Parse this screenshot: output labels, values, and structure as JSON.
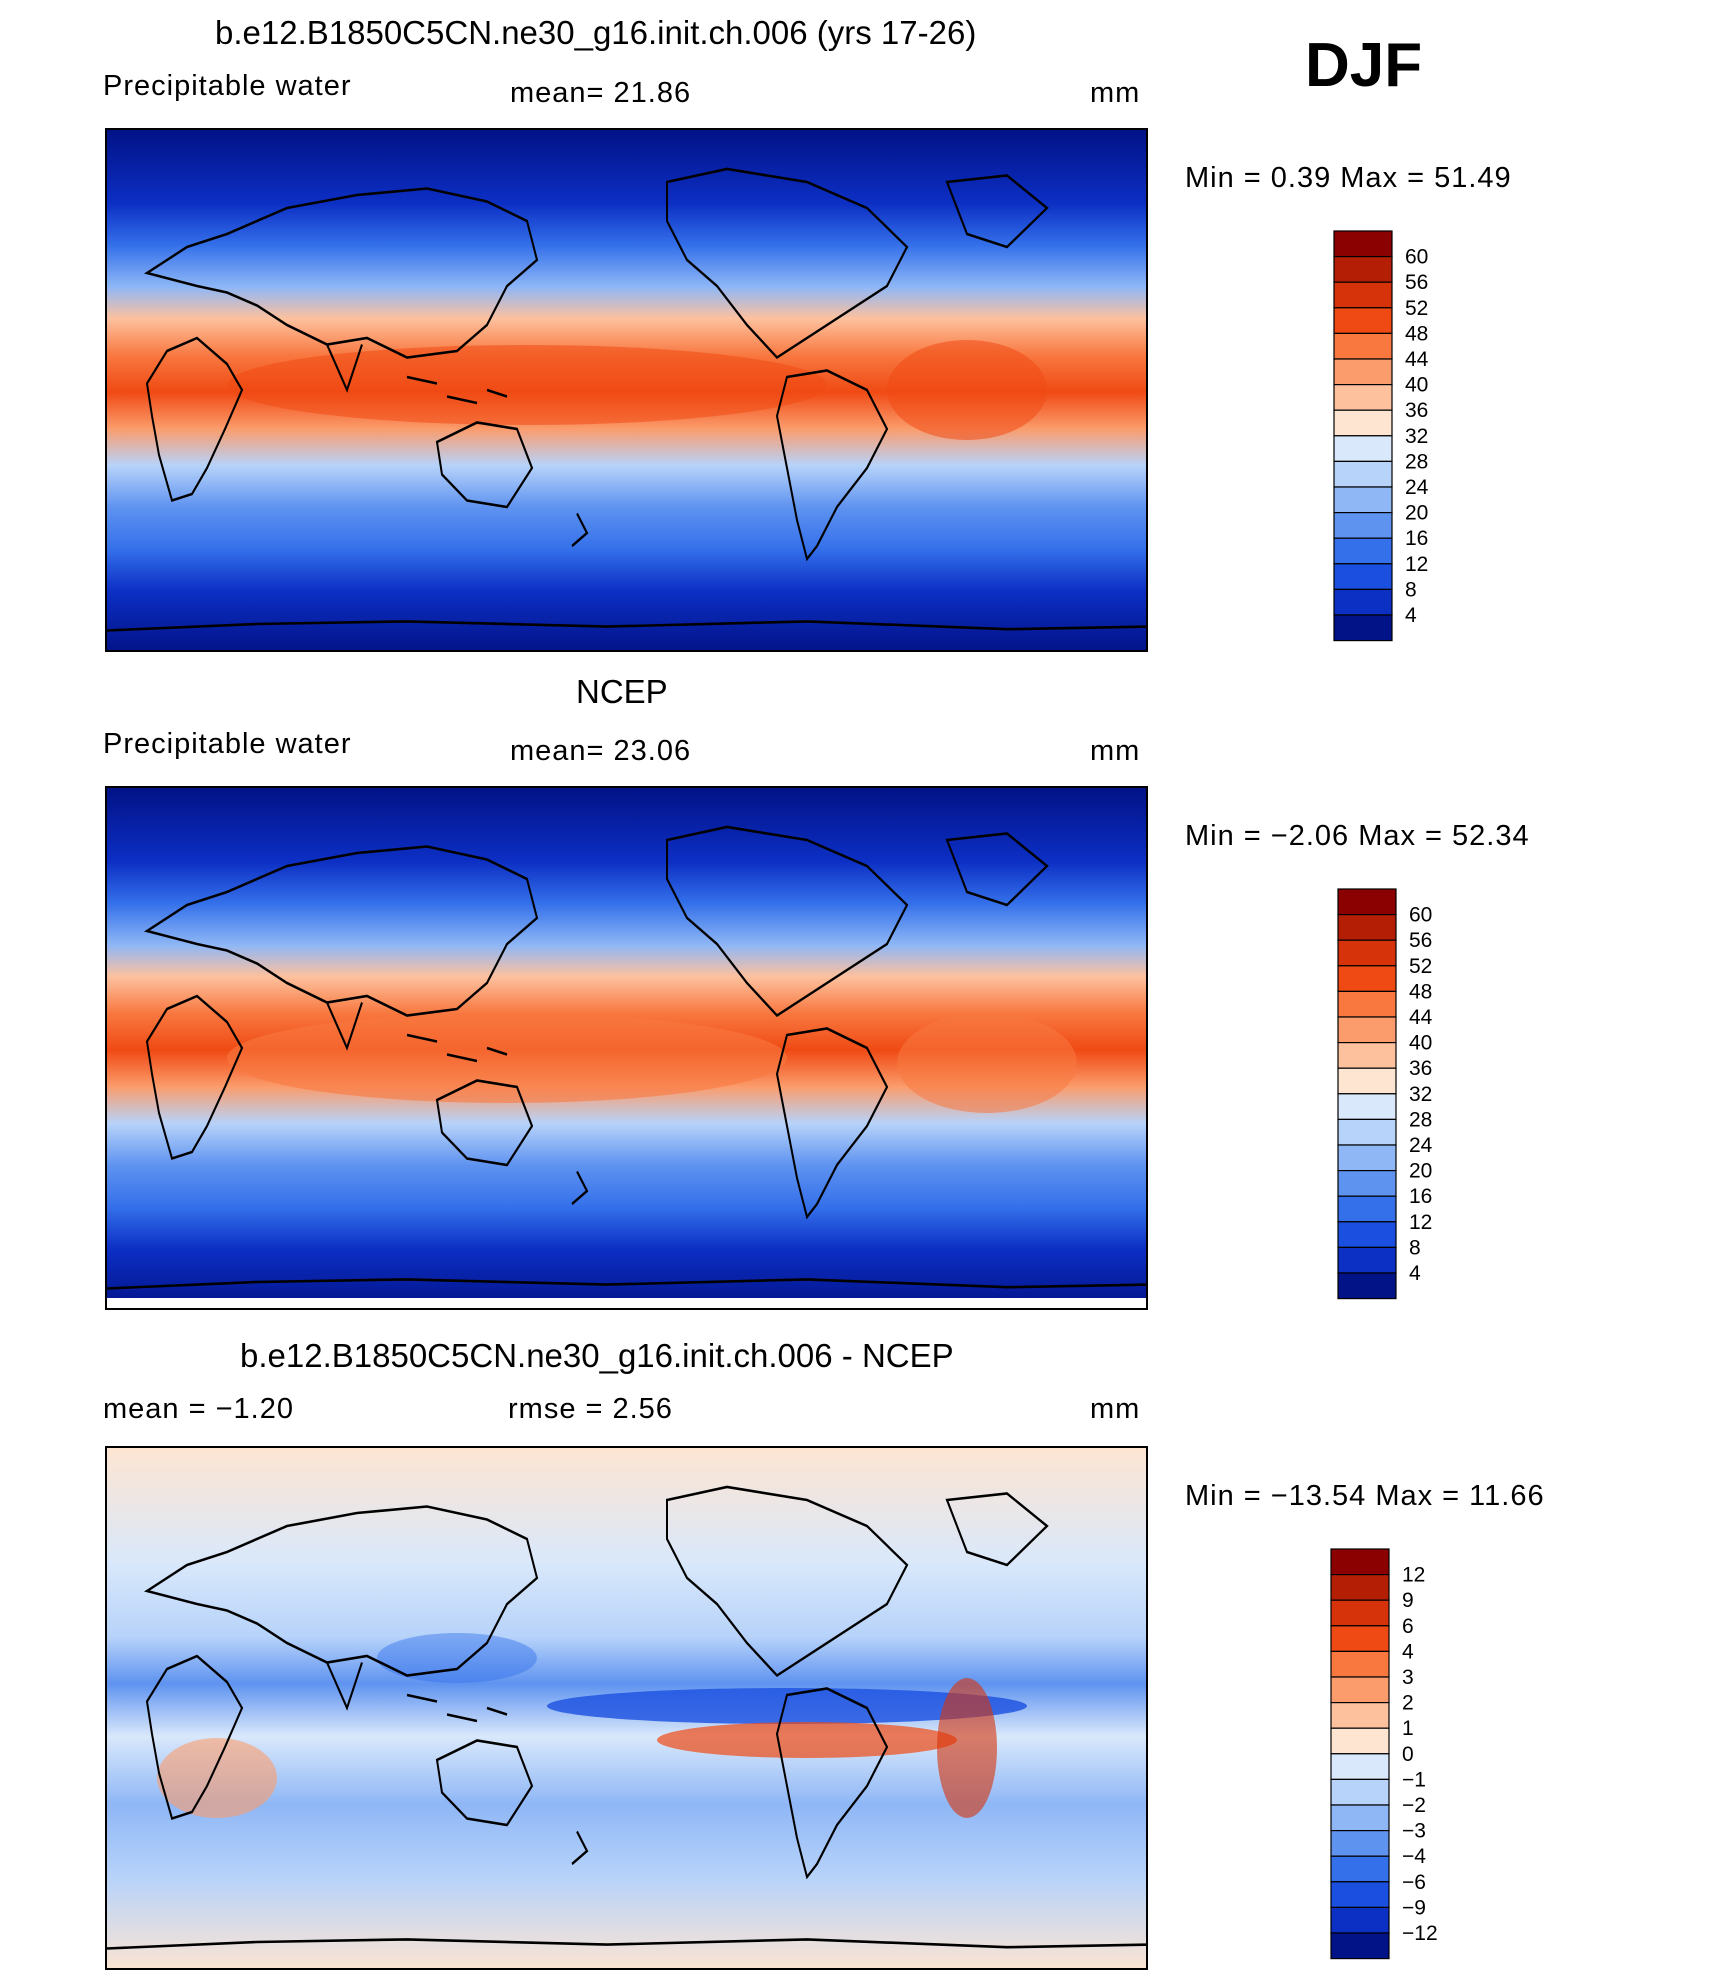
{
  "season": "DJF",
  "panels": [
    {
      "title": "b.e12.B1850C5CN.ne30_g16.init.ch.006 (yrs 17-26)",
      "left_label": "Precipitable  water",
      "center_label": "mean=   21.86",
      "units": "mm",
      "minmax": "Min  =     0.39  Max  =    51.49"
    },
    {
      "title": "NCEP",
      "left_label": "Precipitable  water",
      "center_label": "mean=   23.06",
      "units": "mm",
      "minmax": "Min  =    −2.06  Max  =    52.34"
    },
    {
      "title": "b.e12.B1850C5CN.ne30_g16.init.ch.006 - NCEP",
      "left_label": "mean  =    −1.20",
      "center_label": "rmse  =     2.56",
      "units": "mm",
      "minmax": "Min  =  −13.54  Max  =    11.66"
    }
  ],
  "colorbars": {
    "field": {
      "labels": [
        "60",
        "56",
        "52",
        "48",
        "44",
        "40",
        "36",
        "32",
        "28",
        "24",
        "20",
        "16",
        "12",
        "8",
        "4"
      ],
      "colors": [
        "#8b0000",
        "#b41e05",
        "#d7330a",
        "#f04a14",
        "#f87840",
        "#fb9c6c",
        "#fdc19e",
        "#fde5d2",
        "#d9e8fb",
        "#b7d3fa",
        "#8fb7f6",
        "#5f93f0",
        "#3470ea",
        "#1a4fe0",
        "#0c2fc4",
        "#021287"
      ]
    },
    "diff": {
      "labels": [
        "12",
        "9",
        "6",
        "4",
        "3",
        "2",
        "1",
        "0",
        "−1",
        "−2",
        "−3",
        "−4",
        "−6",
        "−9",
        "−12"
      ],
      "colors": [
        "#8b0000",
        "#b41e05",
        "#d7330a",
        "#f04a14",
        "#f87840",
        "#fb9c6c",
        "#fdc19e",
        "#fde5d2",
        "#d9e8fb",
        "#b7d3fa",
        "#8fb7f6",
        "#5f93f0",
        "#3470ea",
        "#1a4fe0",
        "#0c2fc4",
        "#021287"
      ]
    }
  },
  "chart_data": [
    {
      "type": "heatmap",
      "title": "b.e12.B1850C5CN.ne30_g16.init.ch.006 (yrs 17-26)",
      "variable": "Precipitable  water",
      "units": "mm",
      "mean": 21.86,
      "min": 0.39,
      "max": 51.49,
      "contour_levels": [
        4,
        8,
        12,
        16,
        20,
        24,
        28,
        32,
        36,
        40,
        44,
        48,
        52,
        56,
        60
      ]
    },
    {
      "type": "heatmap",
      "title": "NCEP",
      "variable": "Precipitable  water",
      "units": "mm",
      "mean": 23.06,
      "min": -2.06,
      "max": 52.34,
      "contour_levels": [
        4,
        8,
        12,
        16,
        20,
        24,
        28,
        32,
        36,
        40,
        44,
        48,
        52,
        56,
        60
      ]
    },
    {
      "type": "heatmap",
      "title": "b.e12.B1850C5CN.ne30_g16.init.ch.006 - NCEP",
      "units": "mm",
      "mean": -1.2,
      "rmse": 2.56,
      "min": -13.54,
      "max": 11.66,
      "contour_levels": [
        -12,
        -9,
        -6,
        -4,
        -3,
        -2,
        -1,
        0,
        1,
        2,
        3,
        4,
        6,
        9,
        12
      ]
    }
  ]
}
